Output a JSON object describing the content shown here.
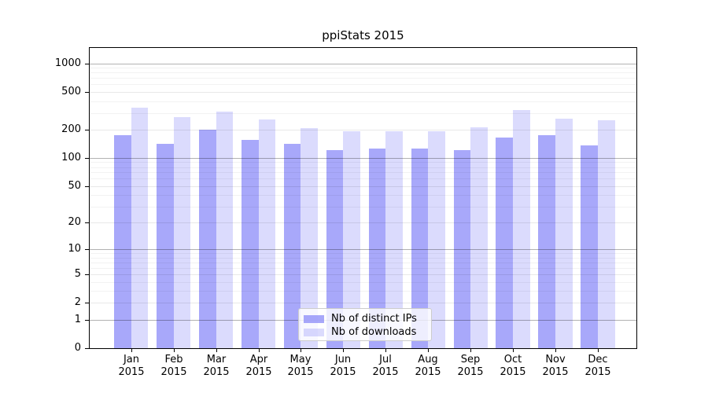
{
  "title": "ppiStats 2015",
  "chart_data": {
    "type": "bar",
    "title": "ppiStats 2015",
    "y_scale": "log10(1+v)",
    "ylim": [
      0,
      1400
    ],
    "grid": "on",
    "legend_position": "lower center",
    "categories": [
      "Jan 2015",
      "Feb 2015",
      "Mar 2015",
      "Apr 2015",
      "May 2015",
      "Jun 2015",
      "Jul 2015",
      "Aug 2015",
      "Sep 2015",
      "Oct 2015",
      "Nov 2015",
      "Dec 2015"
    ],
    "series": [
      {
        "name": "Nb of distinct IPs",
        "color": "rgba(136,136,248,0.73)",
        "values": [
          174,
          141,
          198,
          156,
          140,
          121,
          125,
          126,
          121,
          164,
          175,
          137
        ]
      },
      {
        "name": "Nb of downloads",
        "color": "rgba(136,136,248,0.30)",
        "values": [
          343,
          270,
          312,
          254,
          207,
          190,
          193,
          190,
          212,
          322,
          259,
          249
        ]
      }
    ],
    "y_ticks": [
      0,
      1,
      2,
      5,
      10,
      20,
      50,
      100,
      200,
      500,
      1000
    ],
    "decade_gridline_values": [
      1,
      10,
      100,
      1000
    ],
    "labeled_minor_gridline_values": [
      2,
      5,
      20,
      50,
      200,
      500
    ],
    "minor_gridline_values": [
      3,
      4,
      6,
      7,
      8,
      9,
      30,
      40,
      60,
      70,
      80,
      90,
      300,
      400,
      600,
      700,
      800,
      900
    ]
  },
  "colors": {
    "bar_base": "#8888f8",
    "axis": "#000000",
    "grid_decade": "rgba(0,0,0,0.30)",
    "grid_labeled": "rgba(0,0,0,0.09)",
    "grid_minor": "rgba(0,0,0,0.05)",
    "legend_bg": "rgba(255,255,255,0.8)",
    "legend_border": "#cccccc"
  }
}
